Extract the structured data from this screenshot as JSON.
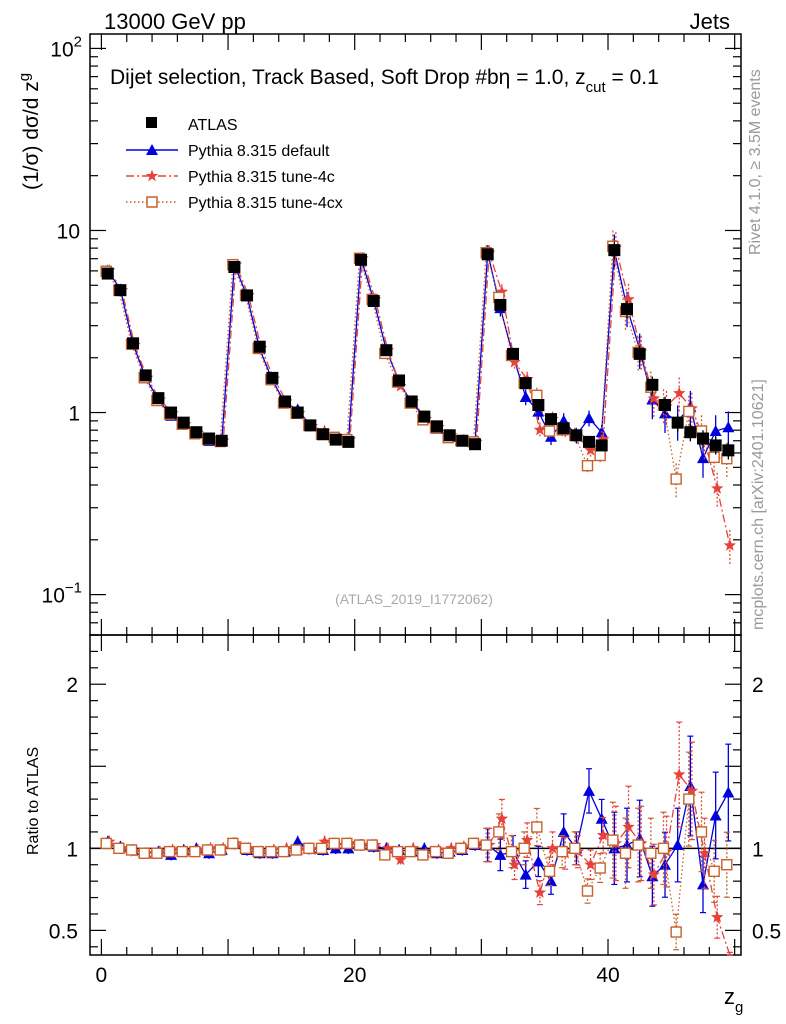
{
  "header": {
    "left": "13000 GeV pp",
    "right": "Jets"
  },
  "side_text": {
    "rivet": "Rivet 4.1.0, ≥ 3.5M events",
    "mcplots": "mcplots.cern.ch [arXiv:2401.10621]"
  },
  "watermark": "(ATLAS_2019_I1772062)",
  "colors": {
    "atlas": "#000000",
    "default": "#0000dd",
    "tune4c": "#e8413c",
    "tune4cx": "#c8612c"
  },
  "chart_data": {
    "type": "scatter",
    "title": "Dijet selection, Track Based, Soft Drop #bη = 1.0, z_cut = 0.1",
    "title_main": "Dijet selection, Track Based, Soft Drop #bη = 1.0, z",
    "title_sub": "cut",
    "title_tail": " = 0.1",
    "ylabel": "(1/σ) dσ/d z_g",
    "ylabel_main": "(1/σ) dσ/d z",
    "ylabel_sub": "g",
    "xlabel": "z_g",
    "xlabel_main": "z",
    "xlabel_sub": "g",
    "ratio_ylabel": "Ratio to ATLAS",
    "xlim": [
      -0.9,
      50.5
    ],
    "ylim": [
      0.06,
      120
    ],
    "yscale": "log",
    "ratio_ylim": [
      0.35,
      2.3
    ],
    "x_ticks": [
      0,
      20,
      40
    ],
    "y_ticks": [
      {
        "value": 0.1,
        "base": "10",
        "exp": "−1"
      },
      {
        "value": 1,
        "base": "1",
        "exp": ""
      },
      {
        "value": 10,
        "base": "10",
        "exp": ""
      },
      {
        "value": 100,
        "base": "10",
        "exp": "2"
      }
    ],
    "ratio_ticks": [
      0.5,
      1,
      2
    ],
    "legend": [
      "ATLAS",
      "Pythia 8.315 default",
      "Pythia 8.315 tune-4c",
      "Pythia 8.315 tune-4cx"
    ],
    "x": [
      0.5,
      1.5,
      2.5,
      3.5,
      4.5,
      5.5,
      6.5,
      7.5,
      8.5,
      9.5,
      10.5,
      11.5,
      12.5,
      13.5,
      14.5,
      15.5,
      16.5,
      17.5,
      18.5,
      19.5,
      20.5,
      21.5,
      22.5,
      23.5,
      24.5,
      25.5,
      26.5,
      27.5,
      28.5,
      29.5,
      30.5,
      31.5,
      32.5,
      33.5,
      34.5,
      35.5,
      36.5,
      37.5,
      38.5,
      39.5,
      40.5,
      41.5,
      42.5,
      43.5,
      44.5,
      45.5,
      46.5,
      47.5,
      48.5,
      49.5
    ],
    "series": [
      {
        "name": "ATLAS",
        "style": "square-filled",
        "values": [
          5.8,
          4.7,
          2.4,
          1.6,
          1.2,
          1.0,
          0.88,
          0.78,
          0.72,
          0.7,
          6.3,
          4.4,
          2.3,
          1.55,
          1.15,
          1.0,
          0.85,
          0.76,
          0.71,
          0.69,
          6.9,
          4.1,
          2.2,
          1.5,
          1.15,
          0.95,
          0.84,
          0.75,
          0.7,
          0.67,
          7.4,
          3.9,
          2.1,
          1.45,
          1.1,
          0.92,
          0.82,
          0.75,
          0.69,
          0.66,
          7.8,
          3.7,
          2.1,
          1.42,
          1.1,
          0.88,
          0.78,
          0.72,
          0.66,
          0.62
        ]
      },
      {
        "name": "Pythia 8.315 default",
        "style": "triangle",
        "ratio": [
          1.04,
          1.01,
          0.99,
          0.97,
          0.98,
          0.96,
          0.99,
          1.0,
          0.97,
          0.99,
          1.03,
          0.99,
          0.97,
          0.97,
          0.98,
          1.04,
          1.0,
          0.99,
          1.0,
          1.0,
          1.02,
          1.01,
          1.0,
          0.99,
          0.98,
          1.0,
          0.97,
          0.98,
          0.99,
          1.02,
          1.02,
          0.96,
          0.98,
          0.84,
          0.92,
          0.8,
          1.1,
          1.0,
          1.35,
          1.18,
          1.0,
          1.02,
          1.06,
          0.83,
          0.9,
          1.02,
          1.38,
          0.78,
          1.2,
          1.34
        ]
      },
      {
        "name": "Pythia 8.315 tune-4c",
        "style": "star",
        "ratio": [
          1.04,
          1.0,
          0.98,
          0.97,
          0.98,
          0.99,
          0.98,
          0.99,
          1.0,
          1.0,
          1.03,
          1.0,
          0.98,
          0.99,
          1.0,
          0.99,
          0.99,
          1.04,
          1.02,
          1.03,
          1.02,
          1.02,
          1.0,
          0.93,
          1.0,
          0.97,
          0.99,
          1.0,
          1.01,
          1.03,
          1.02,
          1.18,
          0.9,
          1.05,
          0.73,
          1.0,
          0.97,
          0.98,
          0.9,
          1.08,
          1.03,
          1.13,
          1.03,
          0.84,
          0.98,
          1.45,
          1.35,
          0.97,
          0.58,
          0.3
        ]
      },
      {
        "name": "Pythia 8.315 tune-4cx",
        "style": "square-open",
        "ratio": [
          1.03,
          1.0,
          0.99,
          0.97,
          0.97,
          0.98,
          0.98,
          0.98,
          0.99,
          0.99,
          1.03,
          1.0,
          0.98,
          0.98,
          0.98,
          0.99,
          1.0,
          1.0,
          1.03,
          1.03,
          1.02,
          1.02,
          0.96,
          0.98,
          0.98,
          0.96,
          0.98,
          0.97,
          1.0,
          1.03,
          1.02,
          1.1,
          0.98,
          1.0,
          1.13,
          0.86,
          0.98,
          1.0,
          0.74,
          0.88,
          1.05,
          0.97,
          1.02,
          0.97,
          1.0,
          0.49,
          1.3,
          1.1,
          0.86,
          0.9
        ]
      }
    ]
  }
}
